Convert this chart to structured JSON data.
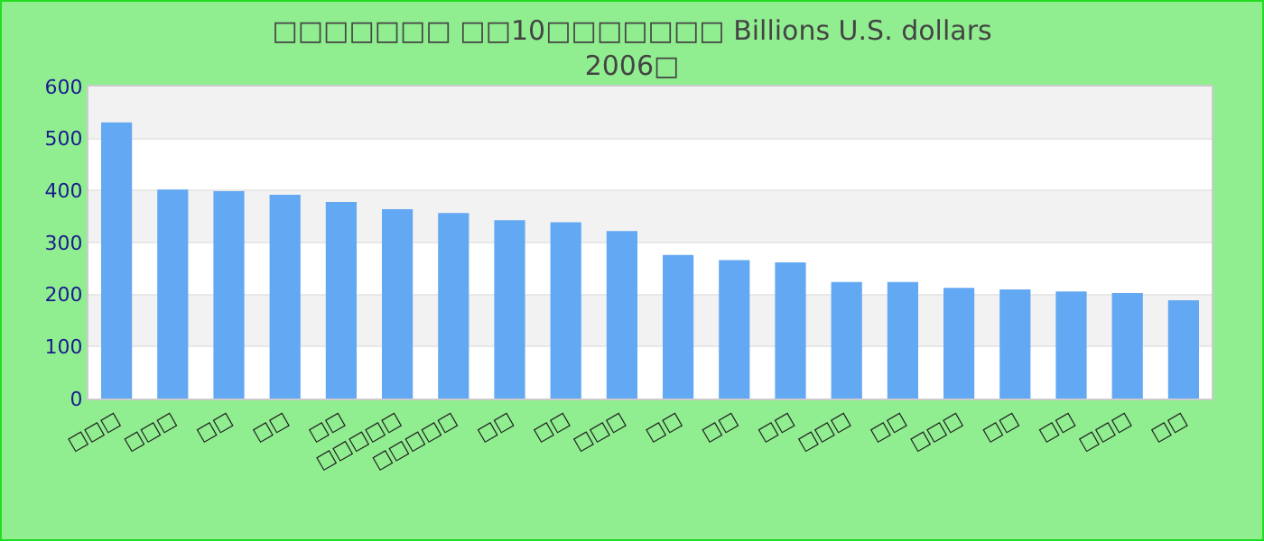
{
  "chart_data": {
    "type": "bar",
    "title": "□□□□□□□ □□10□□□□□□□ Billions U.S. dollars\n2006□",
    "categories": [
      "□□□",
      "□□□",
      "□□",
      "□□",
      "□□",
      "□□□□□",
      "□□□□□",
      "□□",
      "□□",
      "□□□",
      "□□",
      "□□",
      "□□",
      "□□□",
      "□□",
      "□□□",
      "□□",
      "□□",
      "□□□",
      "□□"
    ],
    "values": [
      531,
      402,
      399,
      392,
      378,
      364,
      357,
      343,
      339,
      322,
      276,
      266,
      262,
      224,
      224,
      213,
      210,
      206,
      203,
      189
    ],
    "color": "#63a8f2",
    "ylim": [
      0,
      600
    ],
    "yticks": [
      0,
      100,
      200,
      300,
      400,
      500,
      600
    ],
    "grid": "y"
  }
}
